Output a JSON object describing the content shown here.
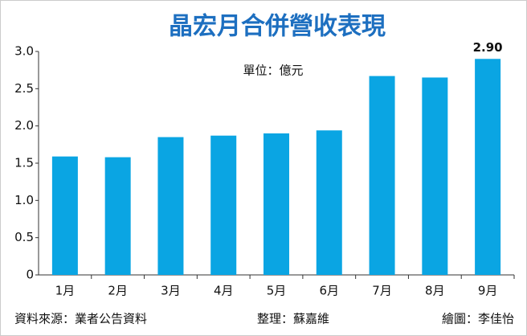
{
  "chart_data": {
    "type": "bar",
    "title": "晶宏月合併營收表現",
    "unit_note": "單位：億元",
    "categories": [
      "1月",
      "2月",
      "3月",
      "4月",
      "5月",
      "6月",
      "7月",
      "8月",
      "9月"
    ],
    "values": [
      1.59,
      1.58,
      1.85,
      1.87,
      1.9,
      1.94,
      2.67,
      2.65,
      2.9
    ],
    "value_labels": [
      null,
      null,
      null,
      null,
      null,
      null,
      null,
      null,
      "2.90"
    ],
    "color": "#0aa5e3",
    "ylim": [
      0,
      3
    ],
    "yticks": [
      0,
      0.5,
      {
        "value": 1,
        "label": "1.0"
      },
      1.5,
      {
        "value": 2,
        "label": "2.0"
      },
      2.5,
      {
        "value": 3,
        "label": "3.0"
      }
    ],
    "grid": false,
    "source": "資料來源：業者公告資料",
    "editor": "整理：蘇嘉維",
    "illustrator": "繪圖：李佳怡"
  }
}
